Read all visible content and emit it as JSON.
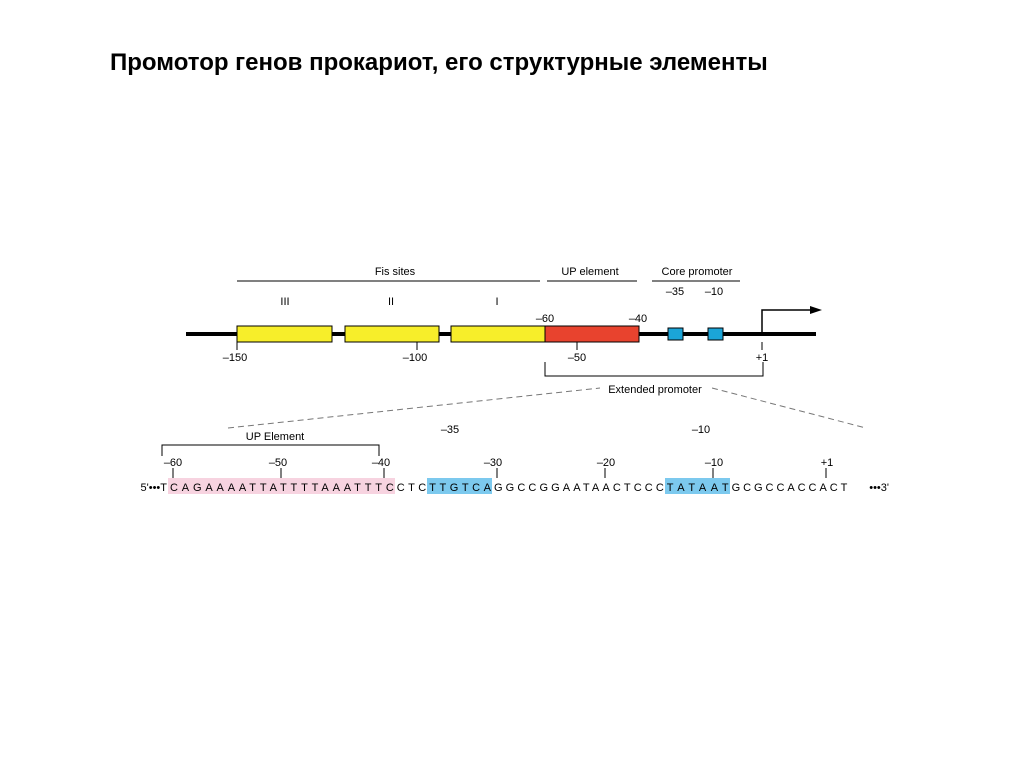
{
  "title": "Промотор генов прокариот, его структурные элементы",
  "upper": {
    "fis_sites": {
      "label": "Fis sites",
      "sites": [
        "III",
        "II",
        "I"
      ]
    },
    "up_element": {
      "label": "UP element",
      "start": "–60",
      "end": "–40"
    },
    "core_promoter": {
      "label": "Core promoter",
      "minus35": "–35",
      "minus10": "–10"
    },
    "axis_labels": [
      "–150",
      "–100",
      "–50",
      "+1"
    ],
    "extended_promoter": "Extended promoter"
  },
  "lower": {
    "up_element": "UP Element",
    "minus35": "–35",
    "minus10": "–10",
    "positions": [
      "–60",
      "–50",
      "–40",
      "–30",
      "–20",
      "–10",
      "+1"
    ],
    "sequence": {
      "prefix": "5'•••T",
      "segments": [
        "CAGAAAATTATTTTAAATTTC",
        "CTC",
        "TTGTCA",
        "GGCCGGAATAACTCCC",
        "TATAAT",
        "GCGCCACCACT"
      ],
      "suffix": "•••3'"
    }
  }
}
